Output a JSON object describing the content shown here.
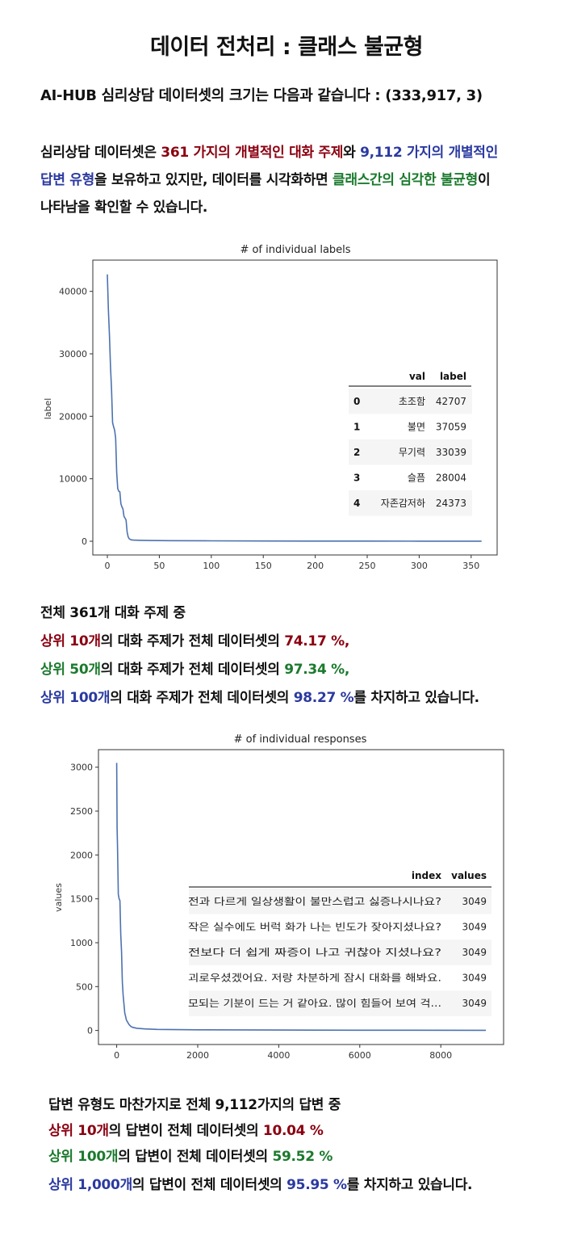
{
  "title": "데이터 전처리 : 클래스 불균형",
  "intro": "AI-HUB 심리상담 데이터셋의 크기는 다음과 같습니다 : (333,917, 3)",
  "para": {
    "l1_a": "심리상담 데이터셋은 ",
    "l1_b": "361 가지의 개별적인 대화 주제",
    "l1_c": "와 ",
    "l1_d": "9,112 가지의 개별적인",
    "l2_a": "답변 유형",
    "l2_b": "을 보유하고 있지만, 데이터를 시각화하면 ",
    "l2_c": "클래스간의 심각한 불균형",
    "l2_d": "이",
    "l3": "나타남을 확인할 수 있습니다."
  },
  "colors": {
    "red": "#8b0010",
    "green": "#1b7a2d",
    "blue": "#2b3aa0",
    "line": "#4c72b0"
  },
  "chart_data": [
    {
      "type": "line",
      "title": "# of individual labels",
      "xlabel": "",
      "ylabel": "label",
      "xlim": [
        -14,
        375
      ],
      "ylim": [
        -2200,
        45000
      ],
      "xticks": [
        0,
        50,
        100,
        150,
        200,
        250,
        300,
        350
      ],
      "yticks": [
        0,
        10000,
        20000,
        30000,
        40000
      ],
      "grid": false,
      "series": [
        {
          "x": [
            0,
            1,
            2,
            3,
            4,
            5,
            6,
            7,
            8,
            9,
            10,
            11,
            12,
            13,
            14,
            15,
            16,
            17,
            18,
            19,
            20,
            21,
            22,
            23,
            25,
            30,
            40,
            60,
            100,
            150,
            200,
            250,
            300,
            360
          ],
          "y": [
            42707,
            37059,
            33039,
            28004,
            24373,
            19000,
            18300,
            17800,
            16500,
            11000,
            8400,
            8000,
            7900,
            6000,
            5500,
            5200,
            4000,
            3700,
            3400,
            1500,
            700,
            400,
            300,
            220,
            180,
            150,
            120,
            90,
            60,
            40,
            30,
            20,
            15,
            10
          ]
        }
      ],
      "table": {
        "headers": [
          "",
          "val",
          "label"
        ],
        "rows": [
          [
            "0",
            "초조함",
            "42707"
          ],
          [
            "1",
            "불면",
            "37059"
          ],
          [
            "2",
            "무기력",
            "33039"
          ],
          [
            "3",
            "슬픔",
            "28004"
          ],
          [
            "4",
            "자존감저하",
            "24373"
          ]
        ]
      }
    },
    {
      "type": "line",
      "title": "# of individual responses",
      "xlabel": "",
      "ylabel": "values",
      "xlim": [
        -450,
        9550
      ],
      "ylim": [
        -160,
        3200
      ],
      "xticks": [
        0,
        2000,
        4000,
        6000,
        8000
      ],
      "yticks": [
        0,
        500,
        1000,
        1500,
        2000,
        2500,
        3000
      ],
      "grid": false,
      "series": [
        {
          "x": [
            0,
            10,
            20,
            40,
            60,
            80,
            100,
            120,
            140,
            160,
            180,
            200,
            240,
            300,
            350,
            400,
            500,
            700,
            1000,
            2000,
            4000,
            6000,
            9112
          ],
          "y": [
            3049,
            2300,
            2100,
            1550,
            1500,
            1480,
            1100,
            900,
            550,
            400,
            300,
            200,
            120,
            70,
            45,
            35,
            25,
            18,
            12,
            8,
            5,
            3,
            2
          ]
        }
      ],
      "table": {
        "headers": [
          "index",
          "values"
        ],
        "rows": [
          [
            "전과 다르게 일상생활이 불만스럽고 싫증나시나요?",
            "3049"
          ],
          [
            "작은 실수에도 버럭 화가 나는 빈도가 잦아지셨나요?",
            "3049"
          ],
          [
            "전보다 더 쉽게 짜증이 나고 귀찮아 지셨나요?",
            "3049"
          ],
          [
            "괴로우셨겠어요. 저랑 차분하게 잠시 대화를 해봐요.",
            "3049"
          ],
          [
            "모되는 기분이 드는 거 같아요. 많이 힘들어 보여 걱...",
            "3049"
          ]
        ]
      }
    }
  ],
  "stats1": {
    "head": "전체 361개 대화 주제 중",
    "r1_a": "상위 10개",
    "r1_b": "의 대화 주제가 전체 데이터셋의 ",
    "r1_c": "74.17 %,",
    "r2_a": "상위 50개",
    "r2_b": "의 대화 주제가 전체 데이터셋의 ",
    "r2_c": "97.34 %,",
    "r3_a": "상위 100개",
    "r3_b": "의 대화 주제가 전체 데이터셋의 ",
    "r3_c": "98.27 %",
    "r3_d": "를 차지하고 있습니다."
  },
  "stats2": {
    "head": "답변 유형도 마찬가지로 전체 9,112가지의 답변 중",
    "r1_a": "상위 10개",
    "r1_b": "의 답변이 전체 데이터셋의 ",
    "r1_c": "10.04 %",
    "r2_a": "상위 100개",
    "r2_b": "의 답변이 전체 데이터셋의 ",
    "r2_c": "59.52 %",
    "r3_a": "상위 1,000개",
    "r3_b": "의 답변이 전체 데이터셋의 ",
    "r3_c": "95.95 %",
    "r3_d": "를 차지하고 있습니다."
  }
}
